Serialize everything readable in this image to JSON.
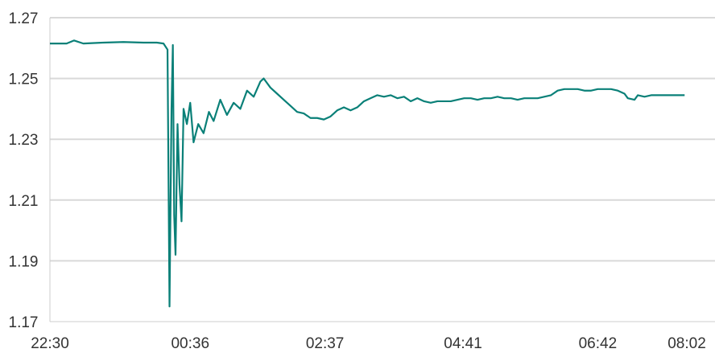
{
  "chart_data": {
    "type": "line",
    "title": "",
    "xlabel": "",
    "ylabel": "",
    "ylim": [
      1.17,
      1.27
    ],
    "y_ticks": [
      "1.27",
      "1.25",
      "1.23",
      "1.21",
      "1.19",
      "1.17"
    ],
    "x_ticks": [
      {
        "label": "22:30",
        "hour": 22.5
      },
      {
        "label": "00:36",
        "hour": 24.6
      },
      {
        "label": "02:37",
        "hour": 26.617
      },
      {
        "label": "04:41",
        "hour": 28.683
      },
      {
        "label": "06:42",
        "hour": 30.7
      },
      {
        "label": "08:02",
        "hour": 32.033
      }
    ],
    "grid": true,
    "colors": {
      "line": "#0a8078",
      "grid": "#d9d9d9",
      "text": "#333333"
    },
    "series": [
      {
        "color": "#0a8078",
        "points": [
          {
            "t": 22.5,
            "y": 1.2615
          },
          {
            "t": 22.75,
            "y": 1.2615
          },
          {
            "t": 22.86,
            "y": 1.2625
          },
          {
            "t": 23.0,
            "y": 1.2615
          },
          {
            "t": 23.3,
            "y": 1.2618
          },
          {
            "t": 23.6,
            "y": 1.262
          },
          {
            "t": 23.9,
            "y": 1.2618
          },
          {
            "t": 24.1,
            "y": 1.2618
          },
          {
            "t": 24.2,
            "y": 1.2615
          },
          {
            "t": 24.26,
            "y": 1.2595
          },
          {
            "t": 24.29,
            "y": 1.175
          },
          {
            "t": 24.32,
            "y": 1.24
          },
          {
            "t": 24.34,
            "y": 1.261
          },
          {
            "t": 24.36,
            "y": 1.205
          },
          {
            "t": 24.38,
            "y": 1.192
          },
          {
            "t": 24.41,
            "y": 1.235
          },
          {
            "t": 24.44,
            "y": 1.215
          },
          {
            "t": 24.47,
            "y": 1.203
          },
          {
            "t": 24.5,
            "y": 1.24
          },
          {
            "t": 24.55,
            "y": 1.235
          },
          {
            "t": 24.6,
            "y": 1.242
          },
          {
            "t": 24.65,
            "y": 1.229
          },
          {
            "t": 24.72,
            "y": 1.235
          },
          {
            "t": 24.8,
            "y": 1.232
          },
          {
            "t": 24.88,
            "y": 1.239
          },
          {
            "t": 24.95,
            "y": 1.236
          },
          {
            "t": 25.05,
            "y": 1.243
          },
          {
            "t": 25.15,
            "y": 1.238
          },
          {
            "t": 25.25,
            "y": 1.242
          },
          {
            "t": 25.35,
            "y": 1.24
          },
          {
            "t": 25.45,
            "y": 1.246
          },
          {
            "t": 25.55,
            "y": 1.244
          },
          {
            "t": 25.65,
            "y": 1.249
          },
          {
            "t": 25.7,
            "y": 1.25
          },
          {
            "t": 25.8,
            "y": 1.247
          },
          {
            "t": 25.9,
            "y": 1.245
          },
          {
            "t": 26.0,
            "y": 1.243
          },
          {
            "t": 26.1,
            "y": 1.241
          },
          {
            "t": 26.2,
            "y": 1.239
          },
          {
            "t": 26.3,
            "y": 1.2385
          },
          {
            "t": 26.4,
            "y": 1.237
          },
          {
            "t": 26.5,
            "y": 1.237
          },
          {
            "t": 26.6,
            "y": 1.2365
          },
          {
            "t": 26.7,
            "y": 1.2375
          },
          {
            "t": 26.8,
            "y": 1.2395
          },
          {
            "t": 26.9,
            "y": 1.2405
          },
          {
            "t": 27.0,
            "y": 1.2395
          },
          {
            "t": 27.1,
            "y": 1.2405
          },
          {
            "t": 27.2,
            "y": 1.2425
          },
          {
            "t": 27.3,
            "y": 1.2435
          },
          {
            "t": 27.4,
            "y": 1.2445
          },
          {
            "t": 27.5,
            "y": 1.244
          },
          {
            "t": 27.6,
            "y": 1.2445
          },
          {
            "t": 27.7,
            "y": 1.2435
          },
          {
            "t": 27.8,
            "y": 1.244
          },
          {
            "t": 27.9,
            "y": 1.2425
          },
          {
            "t": 28.0,
            "y": 1.2435
          },
          {
            "t": 28.1,
            "y": 1.2425
          },
          {
            "t": 28.2,
            "y": 1.242
          },
          {
            "t": 28.3,
            "y": 1.2425
          },
          {
            "t": 28.4,
            "y": 1.2425
          },
          {
            "t": 28.5,
            "y": 1.2425
          },
          {
            "t": 28.6,
            "y": 1.243
          },
          {
            "t": 28.7,
            "y": 1.2435
          },
          {
            "t": 28.8,
            "y": 1.2435
          },
          {
            "t": 28.9,
            "y": 1.243
          },
          {
            "t": 29.0,
            "y": 1.2435
          },
          {
            "t": 29.1,
            "y": 1.2435
          },
          {
            "t": 29.2,
            "y": 1.244
          },
          {
            "t": 29.3,
            "y": 1.2435
          },
          {
            "t": 29.4,
            "y": 1.2435
          },
          {
            "t": 29.5,
            "y": 1.243
          },
          {
            "t": 29.6,
            "y": 1.2435
          },
          {
            "t": 29.7,
            "y": 1.2435
          },
          {
            "t": 29.8,
            "y": 1.2435
          },
          {
            "t": 29.9,
            "y": 1.244
          },
          {
            "t": 30.0,
            "y": 1.2445
          },
          {
            "t": 30.1,
            "y": 1.246
          },
          {
            "t": 30.2,
            "y": 1.2465
          },
          {
            "t": 30.3,
            "y": 1.2465
          },
          {
            "t": 30.4,
            "y": 1.2465
          },
          {
            "t": 30.5,
            "y": 1.246
          },
          {
            "t": 30.6,
            "y": 1.246
          },
          {
            "t": 30.7,
            "y": 1.2465
          },
          {
            "t": 30.8,
            "y": 1.2465
          },
          {
            "t": 30.9,
            "y": 1.2465
          },
          {
            "t": 31.0,
            "y": 1.246
          },
          {
            "t": 31.1,
            "y": 1.245
          },
          {
            "t": 31.15,
            "y": 1.2435
          },
          {
            "t": 31.25,
            "y": 1.243
          },
          {
            "t": 31.3,
            "y": 1.2445
          },
          {
            "t": 31.4,
            "y": 1.244
          },
          {
            "t": 31.5,
            "y": 1.2445
          },
          {
            "t": 31.7,
            "y": 1.2445
          },
          {
            "t": 31.9,
            "y": 1.2445
          },
          {
            "t": 32.0,
            "y": 1.2445
          }
        ]
      }
    ]
  }
}
